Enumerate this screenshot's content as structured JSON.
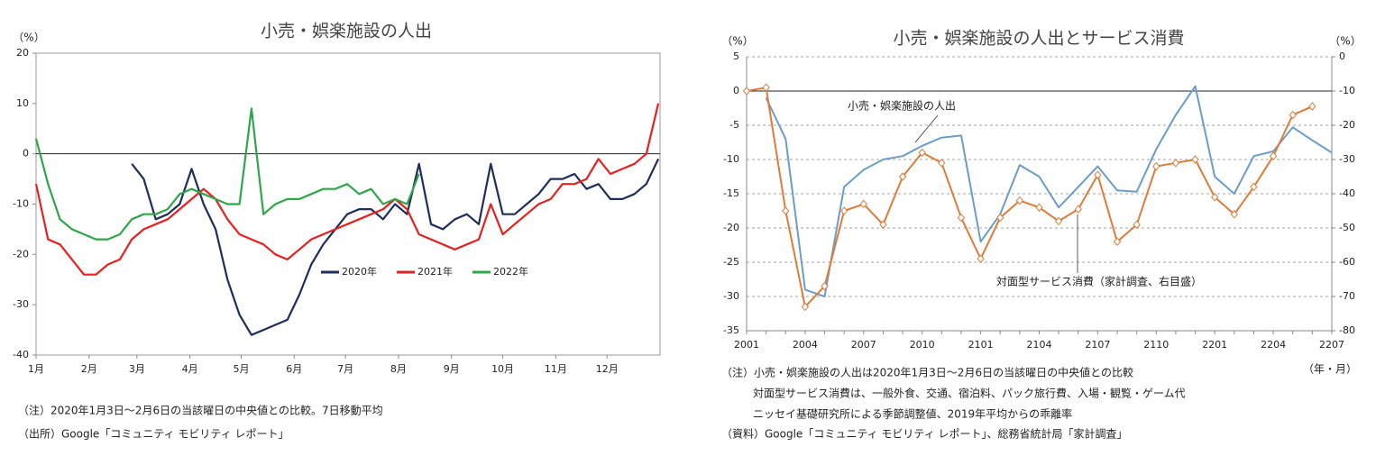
{
  "chart_data": [
    {
      "type": "line",
      "title": "小売・娯楽施設の人出",
      "y_unit": "（%）",
      "x": [
        0,
        7,
        14,
        21,
        28,
        35,
        42,
        49,
        56,
        63,
        70,
        77,
        84,
        91,
        98,
        105,
        112,
        119,
        126,
        133,
        140,
        147,
        154,
        161,
        168,
        175,
        182,
        189,
        196,
        203,
        210,
        217,
        224,
        231,
        238,
        245,
        252,
        259,
        266,
        273,
        280,
        287,
        294,
        301,
        308,
        315,
        322,
        329,
        336,
        343,
        350,
        357,
        364
      ],
      "xlim": [
        0,
        365
      ],
      "xticks": [
        {
          "value": 0,
          "label": "1月"
        },
        {
          "value": 31,
          "label": "2月"
        },
        {
          "value": 59,
          "label": "3月"
        },
        {
          "value": 90,
          "label": "4月"
        },
        {
          "value": 120,
          "label": "5月"
        },
        {
          "value": 151,
          "label": "6月"
        },
        {
          "value": 181,
          "label": "7月"
        },
        {
          "value": 212,
          "label": "8月"
        },
        {
          "value": 243,
          "label": "9月"
        },
        {
          "value": 273,
          "label": "10月"
        },
        {
          "value": 304,
          "label": "11月"
        },
        {
          "value": 334,
          "label": "12月"
        }
      ],
      "ylim": [
        -40,
        20
      ],
      "yticks": [
        20,
        10,
        0,
        -10,
        -20,
        -30,
        -40
      ],
      "grid": false,
      "legend": "lower-center",
      "series": [
        {
          "name": "2020年",
          "color": "#1f2d5a",
          "values": [
            null,
            null,
            null,
            null,
            null,
            null,
            null,
            null,
            -2,
            -5,
            -13,
            -12,
            -10,
            -3,
            -10,
            -15,
            -25,
            -32,
            -36,
            -35,
            -34,
            -33,
            -28,
            -22,
            -18,
            -15,
            -12,
            -11,
            -11,
            -13,
            -10,
            -12,
            -2,
            -14,
            -15,
            -13,
            -12,
            -14,
            -2,
            -12,
            -12,
            -10,
            -8,
            -5,
            -5,
            -4,
            -7,
            -6,
            -9,
            -9,
            -8,
            -6,
            -1
          ]
        },
        {
          "name": "2021年",
          "color": "#e8201f",
          "values": [
            -6,
            -17,
            -18,
            -21,
            -24,
            -24,
            -22,
            -21,
            -17,
            -15,
            -14,
            -13,
            -11,
            -9,
            -7,
            -9,
            -13,
            -16,
            -17,
            -18,
            -20,
            -21,
            -19,
            -17,
            -16,
            -15,
            -14,
            -13,
            -12,
            -11,
            -9,
            -11,
            -16,
            -17,
            -18,
            -19,
            -18,
            -17,
            -10,
            -16,
            -14,
            -12,
            -10,
            -9,
            -6,
            -6,
            -5,
            -1,
            -4,
            -3,
            -2,
            0,
            10
          ]
        },
        {
          "name": "2022年",
          "color": "#2ea64a",
          "values": [
            3,
            -6,
            -13,
            -15,
            -16,
            -17,
            -17,
            -16,
            -13,
            -12,
            -12,
            -11,
            -8,
            -7,
            -8,
            -9,
            -10,
            -10,
            9,
            -12,
            -10,
            -9,
            -9,
            -8,
            -7,
            -7,
            -6,
            -8,
            -7,
            -10,
            -9,
            -10,
            -4,
            null,
            null,
            null,
            null,
            null,
            null,
            null,
            null,
            null,
            null,
            null,
            null,
            null,
            null,
            null,
            null,
            null,
            null,
            null,
            null
          ]
        }
      ],
      "notes": [
        "（注）2020年1月3日～2月6日の当該曜日の中央値との比較。7日移動平均",
        "（出所）Google「コミュニティ モビリティ レポート」"
      ]
    },
    {
      "type": "line",
      "title": "小売・娯楽施設の人出とサービス消費",
      "y_unit": "（%）",
      "y2_unit": "（%）",
      "x_unit": "（年・月）",
      "categories": [
        "2001",
        null,
        null,
        "2004",
        null,
        null,
        "2007",
        null,
        null,
        "2010",
        null,
        null,
        "2101",
        null,
        null,
        "2104",
        null,
        null,
        "2107",
        null,
        null,
        "2110",
        null,
        null,
        "2201",
        null,
        null,
        "2204",
        null,
        null,
        "2207"
      ],
      "ylim": [
        -35,
        5
      ],
      "yticks": [
        5,
        0,
        -5,
        -10,
        -15,
        -20,
        -25,
        -30,
        -35
      ],
      "y2lim": [
        -80,
        0
      ],
      "y2ticks": [
        0,
        -10,
        -20,
        -30,
        -40,
        -50,
        -60,
        -70,
        -80
      ],
      "grid": true,
      "series": [
        {
          "name": "小売・娯楽施設の人出",
          "color": "#6a9ec8",
          "values": [
            null,
            -1,
            -7,
            -29,
            -30,
            -14,
            -11.5,
            -10,
            -9.5,
            -8,
            -6.8,
            -6.5,
            -22,
            -18,
            -10.8,
            -12.5,
            -17,
            -14,
            -11,
            -14.5,
            -14.7,
            -8.5,
            -3.5,
            0.7,
            -12.5,
            -15,
            -9.5,
            -8.8,
            -5.3,
            -7.2,
            -9
          ]
        },
        {
          "name": "対面型サービス消費（家計調査、右目盛）",
          "color": "#e07b39",
          "axis": "y2",
          "values": [
            -10,
            -9,
            -45,
            -73,
            -67,
            -45,
            -43,
            -49,
            -35,
            -28,
            -31,
            -47,
            -59,
            -47,
            -42,
            -44,
            -48,
            -44.5,
            -34.5,
            -54,
            -49,
            -32,
            -31,
            -30,
            -41,
            -46,
            -38,
            -29,
            -17,
            -14.5,
            null
          ]
        }
      ],
      "notes": [
        "（注）小売・娯楽施設の人出は2020年1月3日～2月6日の当該曜日の中央値との比較",
        "対面型サービス消費は、一般外食、交通、宿泊料、パック旅行費、入場・観覧・ゲーム代",
        "ニッセイ基礎研究所による季節調整値、2019年平均からの乖離率",
        "（資料）Google「コミュニティ モビリティ レポート」、総務省統計局「家計調査」"
      ]
    }
  ]
}
